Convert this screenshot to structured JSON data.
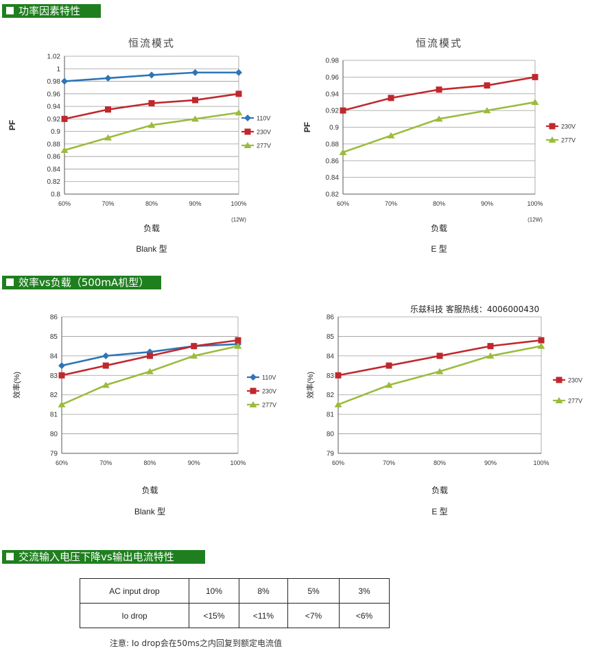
{
  "sections": {
    "pf": "功率因素特性",
    "eff": "效率vs负载（500mA机型）",
    "drop": "交流输入电压下降vs输出电流特性"
  },
  "hotline": "乐兹科技 客服热线：4006000430",
  "table": {
    "rows": [
      [
        "AC input drop",
        "10%",
        "8%",
        "5%",
        "3%"
      ],
      [
        "Io drop",
        "<15%",
        "<11%",
        "<7%",
        "<6%"
      ]
    ]
  },
  "footnote": "注意: Io drop会在50ms之内回复到额定电流值",
  "chart_data": [
    {
      "type": "line",
      "title": "恒流模式",
      "xlabel": "负载",
      "xnote": "(12W)",
      "caption": "Blank 型",
      "ylabel": "PF",
      "categories": [
        "60%",
        "70%",
        "80%",
        "90%",
        "100%"
      ],
      "ylim": [
        0.8,
        1.02
      ],
      "yticks": [
        "0.8",
        "0.82",
        "0.84",
        "0.86",
        "0.88",
        "0.9",
        "0.92",
        "0.94",
        "0.96",
        "0.98",
        "1",
        "1.02"
      ],
      "grid": true,
      "legend": "right",
      "series": [
        {
          "name": "110V",
          "color": "#2e75b6",
          "marker": "diamond",
          "values": [
            0.98,
            0.985,
            0.99,
            0.994,
            0.994
          ]
        },
        {
          "name": "230V",
          "color": "#c0282d",
          "marker": "square",
          "values": [
            0.92,
            0.935,
            0.945,
            0.95,
            0.96
          ]
        },
        {
          "name": "277V",
          "color": "#9bbb3c",
          "marker": "triangle",
          "values": [
            0.87,
            0.89,
            0.91,
            0.92,
            0.93
          ]
        }
      ]
    },
    {
      "type": "line",
      "title": "恒流模式",
      "xlabel": "负载",
      "xnote": "(12W)",
      "caption": "E 型",
      "ylabel": "PF",
      "categories": [
        "60%",
        "70%",
        "80%",
        "90%",
        "100%"
      ],
      "ylim": [
        0.82,
        0.98
      ],
      "yticks": [
        "0.82",
        "0.84",
        "0.86",
        "0.88",
        "0.9",
        "0.92",
        "0.94",
        "0.96",
        "0.98"
      ],
      "grid": true,
      "legend": "right",
      "series": [
        {
          "name": "230V",
          "color": "#c0282d",
          "marker": "square",
          "values": [
            0.92,
            0.935,
            0.945,
            0.95,
            0.96
          ]
        },
        {
          "name": "277V",
          "color": "#9bbb3c",
          "marker": "triangle",
          "values": [
            0.87,
            0.89,
            0.91,
            0.92,
            0.93
          ]
        }
      ]
    },
    {
      "type": "line",
      "title": "",
      "xlabel": "负载",
      "xnote": "",
      "caption": "Blank 型",
      "ylabel": "效率(%)",
      "categories": [
        "60%",
        "70%",
        "80%",
        "90%",
        "100%"
      ],
      "ylim": [
        79,
        86
      ],
      "yticks": [
        "79",
        "80",
        "81",
        "82",
        "83",
        "84",
        "85",
        "86"
      ],
      "grid": true,
      "legend": "right",
      "series": [
        {
          "name": "110V",
          "color": "#2e75b6",
          "marker": "diamond",
          "values": [
            83.5,
            84.0,
            84.2,
            84.5,
            84.6
          ]
        },
        {
          "name": "230V",
          "color": "#c0282d",
          "marker": "square",
          "values": [
            83.0,
            83.5,
            84.0,
            84.5,
            84.8
          ]
        },
        {
          "name": "277V",
          "color": "#9bbb3c",
          "marker": "triangle",
          "values": [
            81.5,
            82.5,
            83.2,
            84.0,
            84.5
          ]
        }
      ]
    },
    {
      "type": "line",
      "title": "",
      "xlabel": "负载",
      "xnote": "",
      "caption": "E 型",
      "ylabel": "效率(%)",
      "categories": [
        "60%",
        "70%",
        "80%",
        "90%",
        "100%"
      ],
      "ylim": [
        79,
        86
      ],
      "yticks": [
        "79",
        "80",
        "81",
        "82",
        "83",
        "84",
        "85",
        "86"
      ],
      "grid": true,
      "legend": "right",
      "series": [
        {
          "name": "230V",
          "color": "#c0282d",
          "marker": "square",
          "values": [
            83.0,
            83.5,
            84.0,
            84.5,
            84.8
          ]
        },
        {
          "name": "277V",
          "color": "#9bbb3c",
          "marker": "triangle",
          "values": [
            81.5,
            82.5,
            83.2,
            84.0,
            84.5
          ]
        }
      ]
    }
  ]
}
